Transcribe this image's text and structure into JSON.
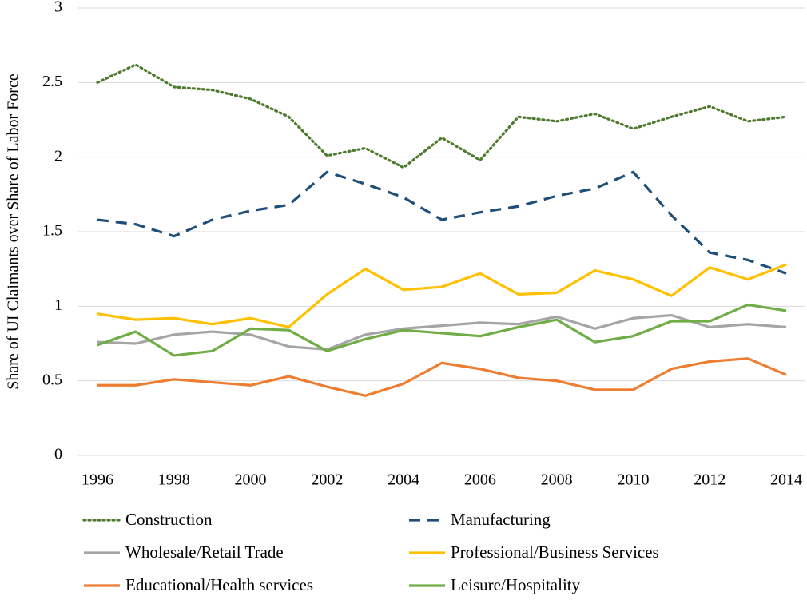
{
  "chart_data": {
    "type": "line",
    "ylabel": "Share of UI Claimants over Share of Labor Force",
    "x": [
      1996,
      1997,
      1998,
      1999,
      2000,
      2001,
      2002,
      2003,
      2004,
      2005,
      2006,
      2007,
      2008,
      2009,
      2010,
      2011,
      2012,
      2013,
      2014
    ],
    "xlim": [
      1995.5,
      2014.5
    ],
    "xticks": [
      1996,
      1998,
      2000,
      2002,
      2004,
      2006,
      2008,
      2010,
      2012,
      2014
    ],
    "ylim": [
      0,
      3
    ],
    "yticks": [
      0,
      0.5,
      1,
      1.5,
      2,
      2.5,
      3
    ],
    "grid": true,
    "legend": "bottom",
    "series": [
      {
        "name": "Construction",
        "color": "#4e7a2e",
        "dash": "dotted",
        "values": [
          2.5,
          2.62,
          2.47,
          2.45,
          2.39,
          2.27,
          2.01,
          2.06,
          1.93,
          2.13,
          1.98,
          2.27,
          2.24,
          2.29,
          2.19,
          2.27,
          2.34,
          2.24,
          2.27
        ]
      },
      {
        "name": "Manufacturing",
        "color": "#1f4e79",
        "dash": "dashed",
        "values": [
          1.58,
          1.55,
          1.47,
          1.58,
          1.64,
          1.68,
          1.9,
          1.82,
          1.73,
          1.58,
          1.63,
          1.67,
          1.74,
          1.79,
          1.9,
          1.61,
          1.36,
          1.31,
          1.22
        ]
      },
      {
        "name": "Wholesale/Retail Trade",
        "color": "#a5a5a5",
        "dash": "solid",
        "values": [
          0.76,
          0.75,
          0.81,
          0.83,
          0.81,
          0.73,
          0.71,
          0.81,
          0.85,
          0.87,
          0.89,
          0.88,
          0.93,
          0.85,
          0.92,
          0.94,
          0.86,
          0.88,
          0.86
        ]
      },
      {
        "name": "Professional/Business Services",
        "color": "#ffc000",
        "dash": "solid",
        "values": [
          0.95,
          0.91,
          0.92,
          0.88,
          0.92,
          0.86,
          1.08,
          1.25,
          1.11,
          1.13,
          1.22,
          1.08,
          1.09,
          1.24,
          1.18,
          1.07,
          1.26,
          1.18,
          1.28
        ]
      },
      {
        "name": "Educational/Health services",
        "color": "#ed7d31",
        "dash": "solid",
        "values": [
          0.47,
          0.47,
          0.51,
          0.49,
          0.47,
          0.53,
          0.46,
          0.4,
          0.48,
          0.62,
          0.58,
          0.52,
          0.5,
          0.44,
          0.44,
          0.58,
          0.63,
          0.65,
          0.54
        ]
      },
      {
        "name": "Leisure/Hospitality",
        "color": "#70ad47",
        "dash": "solid",
        "values": [
          0.74,
          0.83,
          0.67,
          0.7,
          0.85,
          0.84,
          0.7,
          0.78,
          0.84,
          0.82,
          0.8,
          0.86,
          0.91,
          0.76,
          0.8,
          0.9,
          0.9,
          1.01,
          0.97
        ]
      }
    ]
  }
}
